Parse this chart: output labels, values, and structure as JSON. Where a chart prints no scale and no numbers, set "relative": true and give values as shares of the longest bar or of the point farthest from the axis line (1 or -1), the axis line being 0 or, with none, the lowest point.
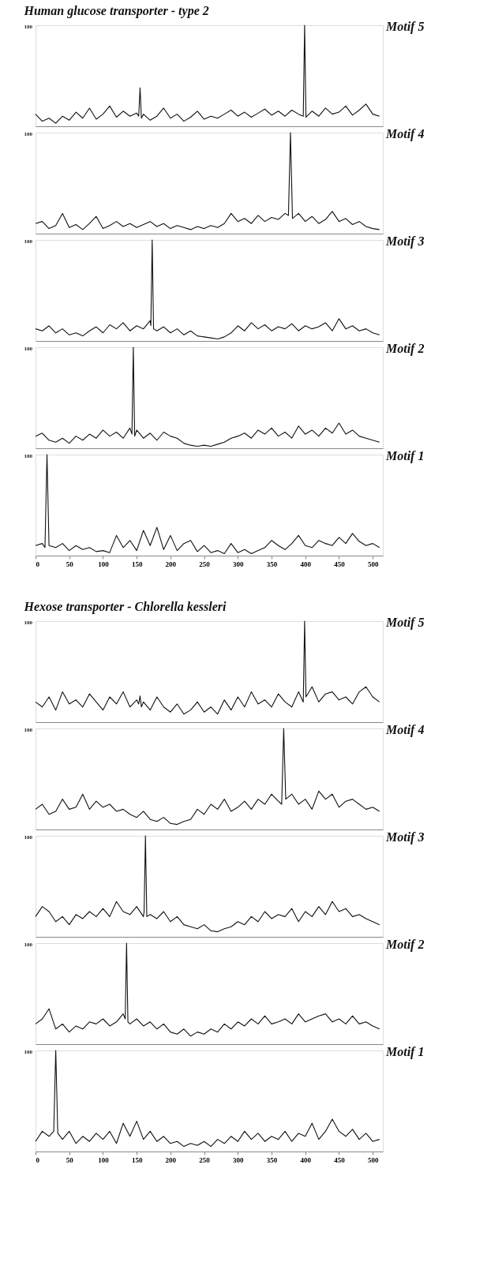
{
  "chart_data": [
    {
      "type": "line",
      "relative": true,
      "title": "Human glucose transporter - type 2",
      "y2label": "Motif 5",
      "annotations": [
        "100"
      ],
      "xlim": [
        0,
        515
      ],
      "tick_labels": false,
      "x": [
        0,
        10,
        20,
        30,
        40,
        50,
        60,
        70,
        80,
        90,
        100,
        110,
        120,
        130,
        140,
        150,
        153,
        155,
        157,
        160,
        170,
        180,
        190,
        200,
        210,
        220,
        230,
        240,
        250,
        260,
        270,
        280,
        290,
        300,
        310,
        320,
        330,
        340,
        350,
        360,
        370,
        380,
        390,
        397,
        399,
        401,
        410,
        420,
        430,
        440,
        450,
        460,
        470,
        480,
        490,
        500,
        510
      ],
      "series": [
        {
          "color": "#111111",
          "values": [
            0.12,
            0.05,
            0.08,
            0.03,
            0.1,
            0.06,
            0.14,
            0.08,
            0.18,
            0.07,
            0.12,
            0.2,
            0.09,
            0.15,
            0.1,
            0.13,
            0.1,
            0.38,
            0.08,
            0.12,
            0.06,
            0.1,
            0.18,
            0.08,
            0.12,
            0.05,
            0.09,
            0.15,
            0.07,
            0.1,
            0.08,
            0.12,
            0.16,
            0.1,
            0.14,
            0.09,
            0.13,
            0.17,
            0.11,
            0.15,
            0.1,
            0.16,
            0.12,
            0.1,
            1.0,
            0.09,
            0.15,
            0.1,
            0.18,
            0.12,
            0.14,
            0.2,
            0.11,
            0.16,
            0.22,
            0.12,
            0.1
          ]
        }
      ]
    },
    {
      "type": "line",
      "relative": true,
      "y2label": "Motif 4",
      "annotations": [
        "100"
      ],
      "xlim": [
        0,
        515
      ],
      "tick_labels": false,
      "x": [
        0,
        10,
        20,
        30,
        40,
        50,
        60,
        70,
        80,
        90,
        100,
        110,
        120,
        130,
        140,
        150,
        160,
        170,
        180,
        190,
        200,
        210,
        220,
        230,
        240,
        250,
        260,
        270,
        280,
        290,
        300,
        310,
        320,
        330,
        340,
        350,
        360,
        370,
        375,
        378,
        381,
        390,
        400,
        410,
        420,
        430,
        440,
        450,
        460,
        470,
        480,
        490,
        500,
        510
      ],
      "series": [
        {
          "color": "#111111",
          "values": [
            0.1,
            0.12,
            0.05,
            0.08,
            0.2,
            0.06,
            0.09,
            0.04,
            0.1,
            0.17,
            0.05,
            0.08,
            0.12,
            0.07,
            0.1,
            0.06,
            0.09,
            0.12,
            0.07,
            0.1,
            0.05,
            0.08,
            0.06,
            0.04,
            0.07,
            0.05,
            0.08,
            0.06,
            0.1,
            0.2,
            0.12,
            0.15,
            0.1,
            0.18,
            0.12,
            0.16,
            0.14,
            0.2,
            0.18,
            1.0,
            0.15,
            0.2,
            0.12,
            0.17,
            0.1,
            0.14,
            0.22,
            0.12,
            0.15,
            0.09,
            0.12,
            0.07,
            0.05,
            0.04
          ]
        }
      ]
    },
    {
      "type": "line",
      "relative": true,
      "y2label": "Motif 3",
      "annotations": [
        "100"
      ],
      "xlim": [
        0,
        515
      ],
      "tick_labels": false,
      "x": [
        0,
        10,
        20,
        30,
        40,
        50,
        60,
        70,
        80,
        90,
        100,
        110,
        120,
        130,
        140,
        150,
        160,
        170,
        171,
        173,
        175,
        180,
        190,
        200,
        210,
        220,
        230,
        240,
        250,
        260,
        270,
        280,
        290,
        300,
        310,
        320,
        330,
        340,
        350,
        360,
        370,
        380,
        390,
        400,
        410,
        420,
        430,
        440,
        450,
        460,
        470,
        480,
        490,
        500,
        510
      ],
      "series": [
        {
          "color": "#111111",
          "values": [
            0.12,
            0.1,
            0.15,
            0.08,
            0.12,
            0.06,
            0.08,
            0.05,
            0.1,
            0.14,
            0.08,
            0.16,
            0.12,
            0.18,
            0.1,
            0.15,
            0.12,
            0.2,
            0.15,
            1.0,
            0.12,
            0.1,
            0.14,
            0.08,
            0.12,
            0.06,
            0.1,
            0.05,
            0.04,
            0.03,
            0.02,
            0.04,
            0.08,
            0.15,
            0.1,
            0.18,
            0.12,
            0.16,
            0.1,
            0.14,
            0.12,
            0.17,
            0.1,
            0.15,
            0.12,
            0.14,
            0.18,
            0.1,
            0.22,
            0.12,
            0.15,
            0.1,
            0.12,
            0.08,
            0.06
          ]
        }
      ]
    },
    {
      "type": "line",
      "relative": true,
      "y2label": "Motif 2",
      "annotations": [
        "100"
      ],
      "xlim": [
        0,
        515
      ],
      "tick_labels": false,
      "x": [
        0,
        10,
        20,
        30,
        40,
        50,
        60,
        70,
        80,
        90,
        100,
        110,
        120,
        130,
        140,
        143,
        145,
        147,
        150,
        160,
        170,
        180,
        190,
        200,
        210,
        220,
        230,
        240,
        250,
        260,
        270,
        280,
        290,
        300,
        310,
        320,
        330,
        340,
        350,
        360,
        370,
        380,
        390,
        400,
        410,
        420,
        430,
        440,
        450,
        460,
        470,
        480,
        490,
        500,
        510
      ],
      "series": [
        {
          "color": "#111111",
          "values": [
            0.12,
            0.15,
            0.08,
            0.06,
            0.1,
            0.05,
            0.12,
            0.08,
            0.14,
            0.1,
            0.18,
            0.12,
            0.16,
            0.1,
            0.2,
            0.14,
            1.0,
            0.12,
            0.18,
            0.1,
            0.15,
            0.08,
            0.16,
            0.12,
            0.1,
            0.05,
            0.03,
            0.02,
            0.03,
            0.02,
            0.04,
            0.06,
            0.1,
            0.12,
            0.15,
            0.1,
            0.18,
            0.14,
            0.2,
            0.12,
            0.16,
            0.1,
            0.22,
            0.14,
            0.18,
            0.12,
            0.2,
            0.15,
            0.25,
            0.14,
            0.18,
            0.12,
            0.1,
            0.08,
            0.06
          ]
        }
      ]
    },
    {
      "type": "line",
      "relative": true,
      "y2label": "Motif 1",
      "annotations": [
        "100"
      ],
      "xlim": [
        0,
        515
      ],
      "tick_labels": "x",
      "xticks": [
        0,
        50,
        100,
        150,
        200,
        250,
        300,
        350,
        400,
        450,
        500
      ],
      "x": [
        0,
        10,
        14,
        17,
        20,
        30,
        40,
        50,
        60,
        70,
        80,
        90,
        100,
        110,
        120,
        130,
        140,
        150,
        160,
        170,
        180,
        190,
        200,
        210,
        220,
        230,
        240,
        250,
        260,
        270,
        280,
        290,
        300,
        310,
        320,
        330,
        340,
        350,
        360,
        370,
        380,
        390,
        400,
        410,
        420,
        430,
        440,
        450,
        460,
        470,
        480,
        490,
        500,
        510
      ],
      "series": [
        {
          "color": "#111111",
          "values": [
            0.1,
            0.12,
            0.08,
            1.0,
            0.1,
            0.08,
            0.12,
            0.05,
            0.1,
            0.06,
            0.08,
            0.04,
            0.05,
            0.03,
            0.2,
            0.08,
            0.15,
            0.05,
            0.25,
            0.1,
            0.28,
            0.06,
            0.2,
            0.05,
            0.12,
            0.15,
            0.04,
            0.1,
            0.03,
            0.05,
            0.02,
            0.12,
            0.03,
            0.06,
            0.02,
            0.05,
            0.08,
            0.15,
            0.1,
            0.06,
            0.12,
            0.2,
            0.1,
            0.08,
            0.15,
            0.12,
            0.1,
            0.18,
            0.12,
            0.22,
            0.14,
            0.1,
            0.12,
            0.08
          ]
        }
      ]
    },
    {
      "type": "line",
      "relative": true,
      "title": "Hexose transporter - Chlorella kessleri",
      "y2label": "Motif 5",
      "annotations": [
        "100"
      ],
      "xlim": [
        0,
        515
      ],
      "tick_labels": false,
      "x": [
        0,
        10,
        20,
        30,
        40,
        50,
        60,
        70,
        80,
        90,
        100,
        110,
        120,
        130,
        140,
        150,
        153,
        155,
        157,
        160,
        170,
        180,
        190,
        200,
        210,
        220,
        230,
        240,
        250,
        260,
        270,
        280,
        290,
        300,
        310,
        320,
        330,
        340,
        350,
        360,
        370,
        380,
        390,
        397,
        399,
        401,
        410,
        420,
        430,
        440,
        450,
        460,
        470,
        480,
        490,
        500,
        510
      ],
      "series": [
        {
          "color": "#111111",
          "values": [
            0.2,
            0.15,
            0.25,
            0.12,
            0.3,
            0.18,
            0.22,
            0.15,
            0.28,
            0.2,
            0.12,
            0.25,
            0.18,
            0.3,
            0.15,
            0.22,
            0.18,
            0.26,
            0.15,
            0.2,
            0.12,
            0.25,
            0.15,
            0.1,
            0.18,
            0.08,
            0.12,
            0.2,
            0.1,
            0.15,
            0.08,
            0.22,
            0.12,
            0.25,
            0.15,
            0.3,
            0.18,
            0.22,
            0.15,
            0.28,
            0.2,
            0.15,
            0.3,
            0.2,
            1.0,
            0.25,
            0.35,
            0.2,
            0.28,
            0.3,
            0.22,
            0.25,
            0.18,
            0.3,
            0.35,
            0.25,
            0.2
          ]
        }
      ]
    },
    {
      "type": "line",
      "relative": true,
      "y2label": "Motif 4",
      "annotations": [
        "100"
      ],
      "xlim": [
        0,
        515
      ],
      "tick_labels": false,
      "x": [
        0,
        10,
        20,
        30,
        40,
        50,
        60,
        70,
        80,
        90,
        100,
        110,
        120,
        130,
        140,
        150,
        160,
        170,
        180,
        190,
        200,
        210,
        220,
        230,
        240,
        250,
        260,
        270,
        280,
        290,
        300,
        310,
        320,
        330,
        340,
        350,
        360,
        365,
        368,
        371,
        380,
        390,
        400,
        410,
        420,
        430,
        440,
        450,
        460,
        470,
        480,
        490,
        500,
        510
      ],
      "series": [
        {
          "color": "#111111",
          "values": [
            0.2,
            0.25,
            0.15,
            0.18,
            0.3,
            0.2,
            0.22,
            0.35,
            0.2,
            0.28,
            0.22,
            0.25,
            0.18,
            0.2,
            0.15,
            0.12,
            0.18,
            0.1,
            0.08,
            0.12,
            0.06,
            0.05,
            0.08,
            0.1,
            0.2,
            0.15,
            0.25,
            0.2,
            0.3,
            0.18,
            0.22,
            0.28,
            0.2,
            0.3,
            0.25,
            0.35,
            0.28,
            0.25,
            1.0,
            0.3,
            0.35,
            0.25,
            0.3,
            0.2,
            0.38,
            0.3,
            0.35,
            0.22,
            0.28,
            0.3,
            0.25,
            0.2,
            0.22,
            0.18
          ]
        }
      ]
    },
    {
      "type": "line",
      "relative": true,
      "y2label": "Motif 3",
      "annotations": [
        "100"
      ],
      "xlim": [
        0,
        515
      ],
      "tick_labels": false,
      "x": [
        0,
        10,
        20,
        30,
        40,
        50,
        60,
        70,
        80,
        90,
        100,
        110,
        120,
        130,
        140,
        150,
        160,
        161,
        163,
        165,
        170,
        180,
        190,
        200,
        210,
        220,
        230,
        240,
        250,
        260,
        270,
        280,
        290,
        300,
        310,
        320,
        330,
        340,
        350,
        360,
        370,
        380,
        390,
        400,
        410,
        420,
        430,
        440,
        450,
        460,
        470,
        480,
        490,
        500,
        510
      ],
      "series": [
        {
          "color": "#111111",
          "values": [
            0.2,
            0.3,
            0.25,
            0.15,
            0.2,
            0.12,
            0.22,
            0.18,
            0.25,
            0.2,
            0.28,
            0.2,
            0.35,
            0.25,
            0.22,
            0.3,
            0.2,
            0.25,
            1.0,
            0.2,
            0.22,
            0.18,
            0.25,
            0.15,
            0.2,
            0.12,
            0.1,
            0.08,
            0.12,
            0.06,
            0.05,
            0.08,
            0.1,
            0.15,
            0.12,
            0.2,
            0.15,
            0.25,
            0.18,
            0.22,
            0.2,
            0.28,
            0.15,
            0.25,
            0.2,
            0.3,
            0.22,
            0.35,
            0.25,
            0.28,
            0.2,
            0.22,
            0.18,
            0.15,
            0.12
          ]
        }
      ]
    },
    {
      "type": "line",
      "relative": true,
      "y2label": "Motif 2",
      "annotations": [
        "100"
      ],
      "xlim": [
        0,
        515
      ],
      "tick_labels": false,
      "x": [
        0,
        10,
        20,
        30,
        40,
        50,
        60,
        70,
        80,
        90,
        100,
        110,
        120,
        130,
        133,
        135,
        137,
        140,
        150,
        160,
        170,
        180,
        190,
        200,
        210,
        220,
        230,
        240,
        250,
        260,
        270,
        280,
        290,
        300,
        310,
        320,
        330,
        340,
        350,
        360,
        370,
        380,
        390,
        400,
        410,
        420,
        430,
        440,
        450,
        460,
        470,
        480,
        490,
        500,
        510
      ],
      "series": [
        {
          "color": "#111111",
          "values": [
            0.2,
            0.25,
            0.35,
            0.15,
            0.2,
            0.12,
            0.18,
            0.15,
            0.22,
            0.2,
            0.25,
            0.18,
            0.22,
            0.3,
            0.25,
            1.0,
            0.22,
            0.2,
            0.25,
            0.18,
            0.22,
            0.15,
            0.2,
            0.12,
            0.1,
            0.15,
            0.08,
            0.12,
            0.1,
            0.15,
            0.12,
            0.2,
            0.15,
            0.22,
            0.18,
            0.25,
            0.2,
            0.28,
            0.2,
            0.22,
            0.25,
            0.2,
            0.3,
            0.22,
            0.25,
            0.28,
            0.3,
            0.22,
            0.25,
            0.2,
            0.28,
            0.2,
            0.22,
            0.18,
            0.15
          ]
        }
      ]
    },
    {
      "type": "line",
      "relative": true,
      "y2label": "Motif 1",
      "annotations": [
        "100"
      ],
      "xlim": [
        0,
        515
      ],
      "tick_labels": "x",
      "xticks": [
        0,
        50,
        100,
        150,
        200,
        250,
        300,
        350,
        400,
        450,
        500
      ],
      "x": [
        0,
        10,
        20,
        27,
        30,
        33,
        40,
        50,
        60,
        70,
        80,
        90,
        100,
        110,
        120,
        130,
        140,
        150,
        160,
        170,
        180,
        190,
        200,
        210,
        220,
        230,
        240,
        250,
        260,
        270,
        280,
        290,
        300,
        310,
        320,
        330,
        340,
        350,
        360,
        370,
        380,
        390,
        400,
        410,
        420,
        430,
        440,
        450,
        460,
        470,
        480,
        490,
        500,
        510
      ],
      "series": [
        {
          "color": "#111111",
          "values": [
            0.1,
            0.2,
            0.15,
            0.2,
            1.0,
            0.18,
            0.12,
            0.2,
            0.08,
            0.15,
            0.1,
            0.18,
            0.12,
            0.2,
            0.08,
            0.28,
            0.15,
            0.3,
            0.12,
            0.2,
            0.1,
            0.15,
            0.08,
            0.1,
            0.05,
            0.08,
            0.06,
            0.1,
            0.05,
            0.12,
            0.08,
            0.15,
            0.1,
            0.2,
            0.12,
            0.18,
            0.1,
            0.15,
            0.12,
            0.2,
            0.1,
            0.18,
            0.15,
            0.28,
            0.12,
            0.2,
            0.32,
            0.2,
            0.15,
            0.22,
            0.12,
            0.18,
            0.1,
            0.12
          ]
        }
      ]
    }
  ]
}
